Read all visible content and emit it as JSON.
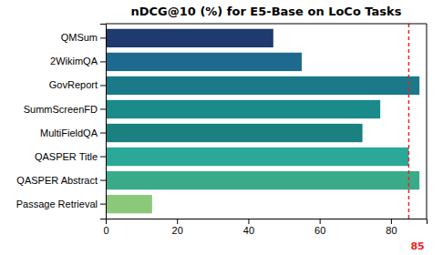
{
  "chart_data": {
    "type": "bar",
    "orientation": "horizontal",
    "title": "nDCG@10 (%) for E5-Base on LoCo Tasks",
    "categories": [
      "QMSum",
      "2WikimQA",
      "GovReport",
      "SummScreenFD",
      "MultiFieldQA",
      "QASPER Title",
      "QASPER Abstract",
      "Passage Retrieval"
    ],
    "values": [
      47,
      55,
      88,
      77,
      72,
      85,
      88,
      13
    ],
    "colors": [
      "#1e3a6e",
      "#1e6a8e",
      "#1a7a8a",
      "#1a8a8a",
      "#1a8080",
      "#2aa898",
      "#3aab88",
      "#8ac87a"
    ],
    "xlim": [
      0,
      90
    ],
    "xticks": [
      0,
      20,
      40,
      60,
      80
    ],
    "grid": false,
    "annotations": [
      {
        "x": 85,
        "label": "85",
        "color": "#ee2222",
        "line_style": "dashed"
      }
    ]
  }
}
